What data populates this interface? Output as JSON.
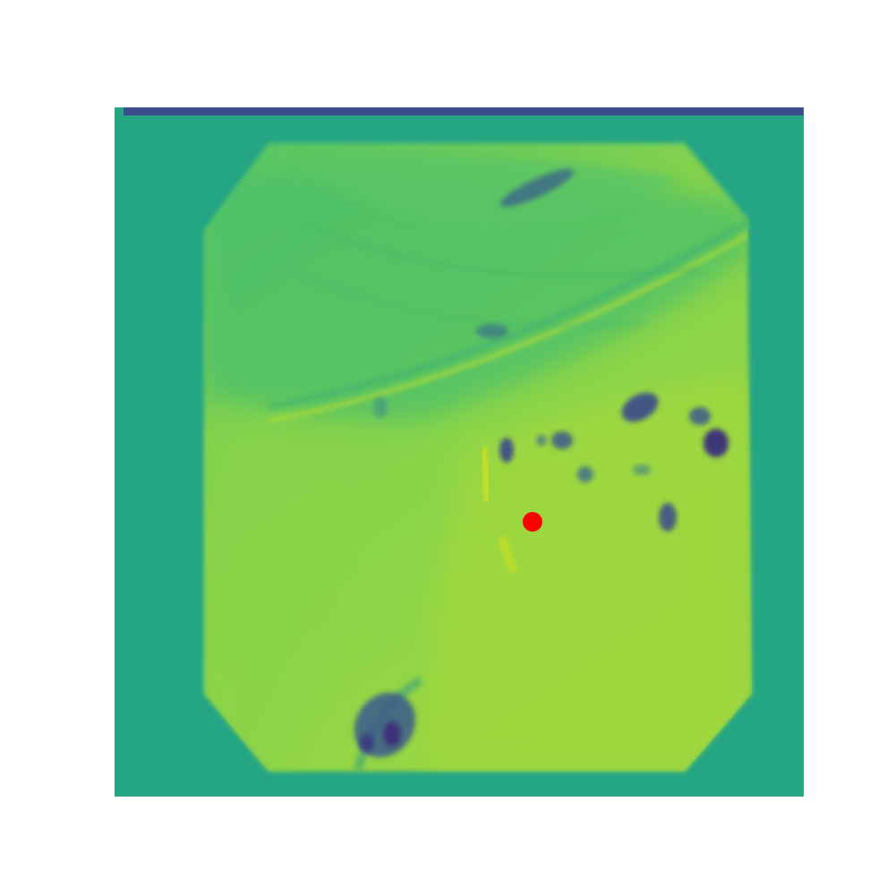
{
  "figure": {
    "colormap": "viridis",
    "colors": {
      "background": "#ffffff",
      "border_band": "#24a584",
      "top_strip": "#3b4c8c",
      "tissue_base": "#6cca5a",
      "tissue_bright": "#a5d83c",
      "tissue_dark": "#33b06f",
      "lesion_dark": "#3a3f8a",
      "lesion_mid": "#2e6f8e",
      "marker": "#ff0000"
    },
    "marker": {
      "shape": "circle",
      "color": "#ff0000"
    }
  }
}
